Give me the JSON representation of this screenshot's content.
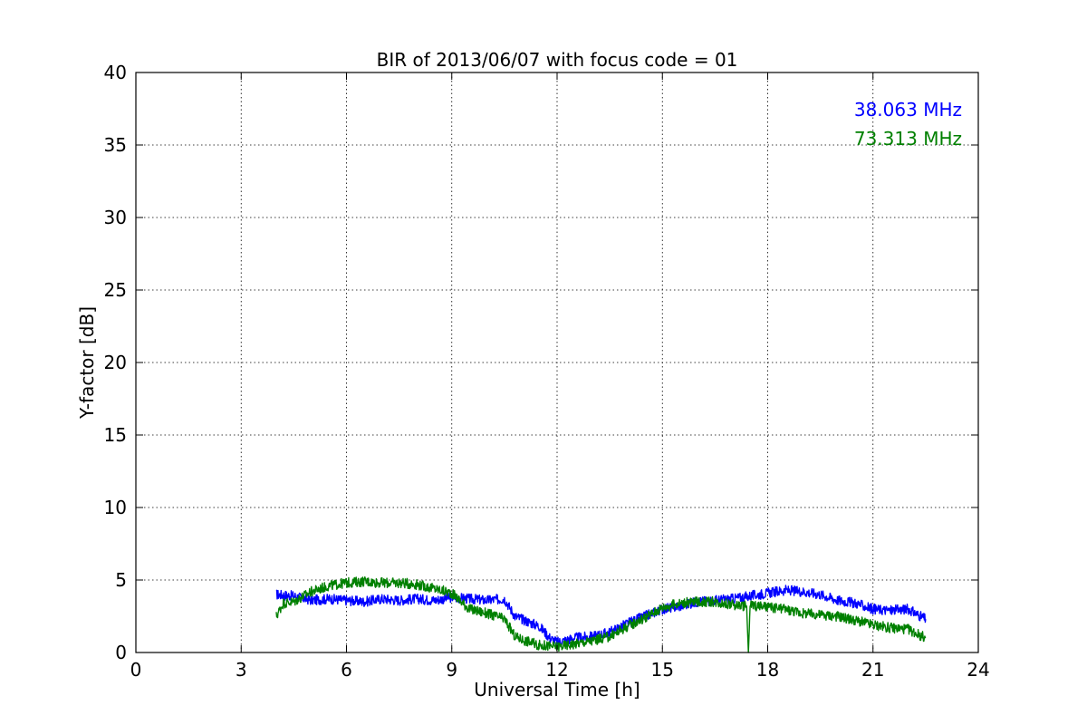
{
  "chart_data": {
    "type": "line",
    "title": "BIR of 2013/06/07 with focus code = 01",
    "xlabel": "Universal Time [h]",
    "ylabel": "Y-factor [dB]",
    "xlim": [
      0,
      24
    ],
    "ylim": [
      0,
      40
    ],
    "xticks": [
      0,
      3,
      6,
      9,
      12,
      15,
      18,
      21,
      24
    ],
    "yticks": [
      0,
      5,
      10,
      15,
      20,
      25,
      30,
      35,
      40
    ],
    "grid": true,
    "legend_placement": "top-right",
    "series": [
      {
        "name": "38.063 MHz",
        "color": "#0000ff",
        "x": [
          4.0,
          4.5,
          5.0,
          5.5,
          6.0,
          6.5,
          7.0,
          7.5,
          8.0,
          8.5,
          9.0,
          9.5,
          10.0,
          10.5,
          10.8,
          11.0,
          11.5,
          11.8,
          12.0,
          12.5,
          13.0,
          13.5,
          14.0,
          14.5,
          15.0,
          15.5,
          16.0,
          16.5,
          17.0,
          17.5,
          18.0,
          18.5,
          19.0,
          19.5,
          20.0,
          20.5,
          21.0,
          21.5,
          22.0,
          22.5
        ],
        "y": [
          4.0,
          3.9,
          3.6,
          3.7,
          3.6,
          3.5,
          3.7,
          3.6,
          3.7,
          3.6,
          3.8,
          3.7,
          3.6,
          3.7,
          2.5,
          2.3,
          1.8,
          1.0,
          0.7,
          1.0,
          1.1,
          1.4,
          2.0,
          2.5,
          3.0,
          3.2,
          3.5,
          3.6,
          3.7,
          3.9,
          4.1,
          4.3,
          4.2,
          4.0,
          3.6,
          3.4,
          3.0,
          2.9,
          3.0,
          2.3
        ]
      },
      {
        "name": "73.313 MHz",
        "color": "#008000",
        "x": [
          4.0,
          4.2,
          4.5,
          5.0,
          5.5,
          6.0,
          6.5,
          7.0,
          7.5,
          8.0,
          8.5,
          9.0,
          9.5,
          10.0,
          10.5,
          10.8,
          11.0,
          11.5,
          12.0,
          12.5,
          13.0,
          13.5,
          14.0,
          14.5,
          15.0,
          15.5,
          16.0,
          16.5,
          17.0,
          17.4,
          17.45,
          17.5,
          18.0,
          18.5,
          19.0,
          19.5,
          20.0,
          20.5,
          21.0,
          21.5,
          22.0,
          22.5
        ],
        "y": [
          2.5,
          3.4,
          3.5,
          4.2,
          4.6,
          4.8,
          4.9,
          4.8,
          4.8,
          4.7,
          4.4,
          4.1,
          3.0,
          2.7,
          2.3,
          1.1,
          0.9,
          0.5,
          0.4,
          0.6,
          0.8,
          1.1,
          1.8,
          2.4,
          3.1,
          3.4,
          3.5,
          3.5,
          3.3,
          3.2,
          0.0,
          3.3,
          3.1,
          3.0,
          2.7,
          2.6,
          2.5,
          2.2,
          1.9,
          1.7,
          1.6,
          1.0
        ]
      }
    ]
  }
}
